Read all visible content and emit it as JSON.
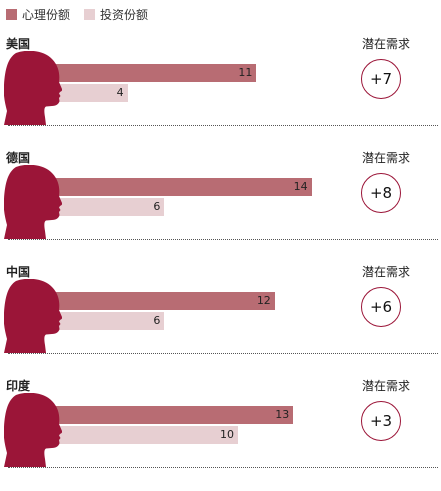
{
  "legend": {
    "psych": {
      "label": "心理份额",
      "color": "#b86c73"
    },
    "invest": {
      "label": "投资份额",
      "color": "#e7cfd2"
    }
  },
  "demand_label": "潜在需求",
  "head_color": "#9b1538",
  "chart_data": {
    "type": "bar",
    "orientation": "horizontal",
    "categories": [
      "美国",
      "德国",
      "中国",
      "印度"
    ],
    "series": [
      {
        "name": "心理份额",
        "values": [
          11,
          14,
          12,
          13
        ],
        "color": "#b86c73"
      },
      {
        "name": "投资份额",
        "values": [
          4,
          6,
          6,
          10
        ],
        "color": "#e7cfd2"
      }
    ],
    "potential_demand": [
      "+7",
      "+8",
      "+6",
      "+3"
    ],
    "grid": false,
    "legend_position": "top-left"
  }
}
